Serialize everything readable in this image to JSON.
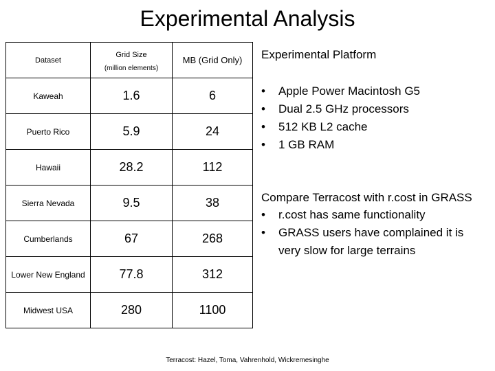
{
  "title": "Experimental Analysis",
  "table": {
    "headers": {
      "dataset": "Dataset",
      "grid_size": "Grid Size",
      "grid_size_sub": "(million elements)",
      "mb": "MB (Grid Only)"
    },
    "rows": [
      {
        "name": "Kaweah",
        "grid": "1.6",
        "mb": "6"
      },
      {
        "name": "Puerto Rico",
        "grid": "5.9",
        "mb": "24"
      },
      {
        "name": "Hawaii",
        "grid": "28.2",
        "mb": "112"
      },
      {
        "name": "Sierra Nevada",
        "grid": "9.5",
        "mb": "38"
      },
      {
        "name": "Cumberlands",
        "grid": "67",
        "mb": "268"
      },
      {
        "name": "Lower New England",
        "grid": "77.8",
        "mb": "312"
      },
      {
        "name": "Midwest USA",
        "grid": "280",
        "mb": "1100"
      }
    ]
  },
  "platform": {
    "title": "Experimental Platform",
    "bullet": "•",
    "items": [
      "Apple Power Macintosh G5",
      "Dual 2.5 GHz processors",
      "512 KB L2 cache",
      "1 GB RAM"
    ]
  },
  "compare": {
    "lead": "Compare Terracost with r.cost in GRASS",
    "items": [
      "r.cost has same functionality",
      "GRASS users have complained it is very slow for large terrains"
    ]
  },
  "footer": "Terracost: Hazel, Toma, Vahrenhold, Wickremesinghe"
}
